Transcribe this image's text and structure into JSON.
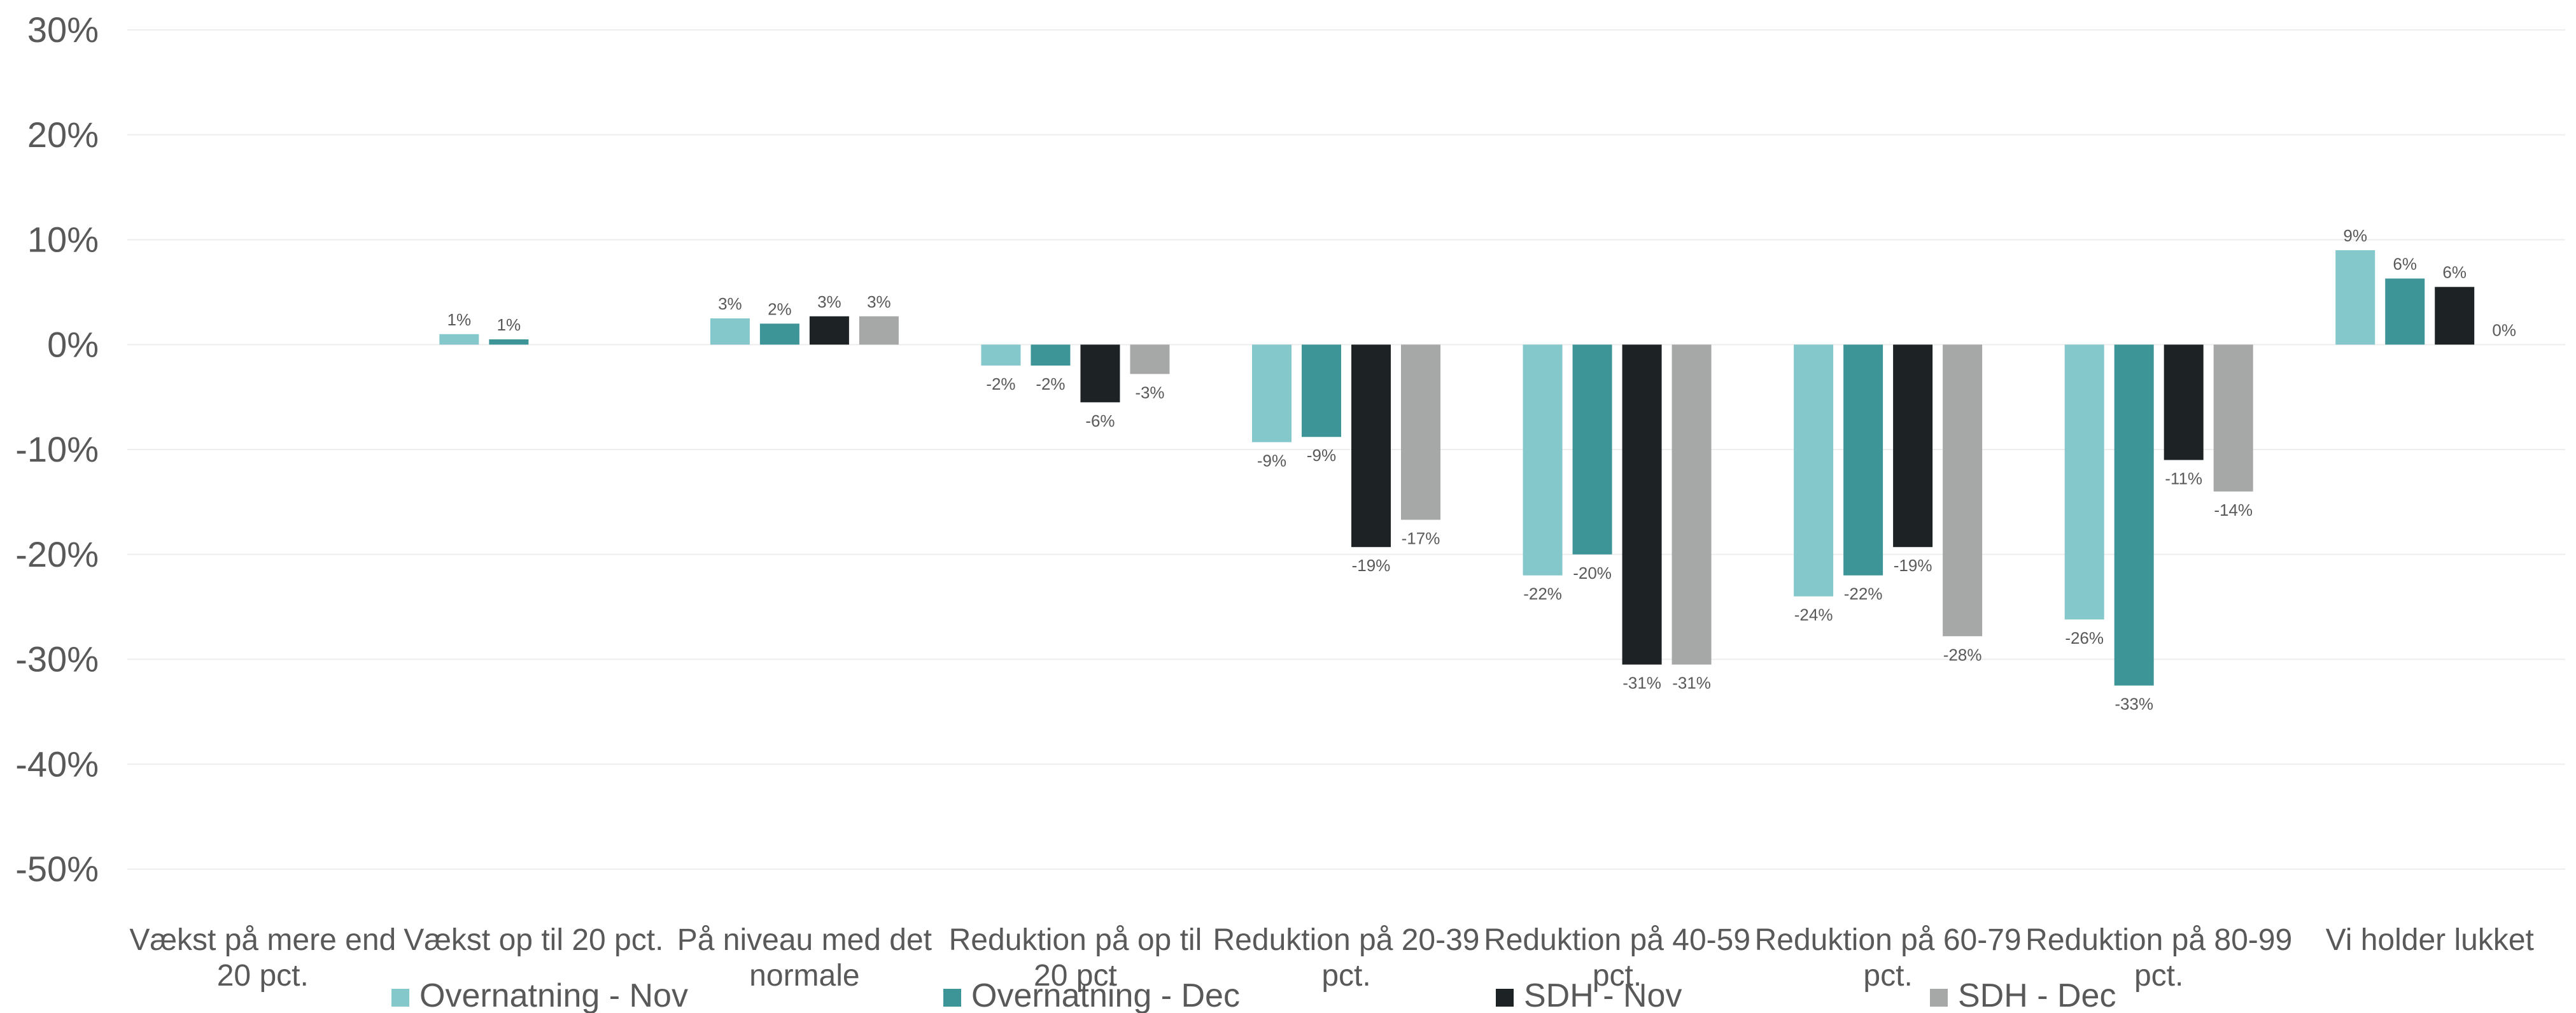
{
  "chart_data": {
    "type": "bar",
    "title": "",
    "xlabel": "",
    "ylabel": "",
    "ylim": [
      -0.5,
      0.3
    ],
    "y_ticks": [
      0.3,
      0.2,
      0.1,
      0,
      -0.1,
      -0.2,
      -0.3,
      -0.4,
      -0.5
    ],
    "y_tick_labels": [
      "30%",
      "20%",
      "10%",
      "0%",
      "-10%",
      "-20%",
      "-30%",
      "-40%",
      "-50%"
    ],
    "grid": true,
    "legend_position": "bottom",
    "categories": [
      [
        "Vækst på mere end",
        "20 pct."
      ],
      [
        "Vækst op til 20 pct."
      ],
      [
        "På niveau med det",
        "normale"
      ],
      [
        "Reduktion på op til",
        "20 pct"
      ],
      [
        "Reduktion på 20-39",
        "pct."
      ],
      [
        "Reduktion på 40-59",
        "pct."
      ],
      [
        "Reduktion på 60-79",
        "pct."
      ],
      [
        "Reduktion på 80-99",
        "pct."
      ],
      [
        "Vi holder lukket"
      ]
    ],
    "series": [
      {
        "name": "Overnatning - Nov",
        "color": "#84c8cb",
        "values": [
          null,
          0.01,
          0.025,
          -0.02,
          -0.093,
          -0.22,
          -0.24,
          -0.262,
          0.09
        ],
        "labels": [
          "",
          "1%",
          "3%",
          "-2%",
          "-9%",
          "-22%",
          "-24%",
          "-26%",
          "9%"
        ]
      },
      {
        "name": "Overnatning - Dec",
        "color": "#3d9597",
        "values": [
          null,
          0.005,
          0.02,
          -0.02,
          -0.088,
          -0.2,
          -0.22,
          -0.325,
          0.063
        ],
        "labels": [
          "",
          "1%",
          "2%",
          "-2%",
          "-9%",
          "-20%",
          "-22%",
          "-33%",
          "6%"
        ]
      },
      {
        "name": "SDH - Nov",
        "color": "#1d2224",
        "values": [
          null,
          null,
          0.027,
          -0.055,
          -0.193,
          -0.305,
          -0.193,
          -0.11,
          0.055
        ],
        "labels": [
          "",
          "",
          "3%",
          "-6%",
          "-19%",
          "-31%",
          "-19%",
          "-11%",
          "6%"
        ]
      },
      {
        "name": "SDH - Dec",
        "color": "#a6a8a7",
        "values": [
          null,
          null,
          0.027,
          -0.028,
          -0.167,
          -0.305,
          -0.278,
          -0.14,
          0
        ],
        "labels": [
          "",
          "",
          "3%",
          "-3%",
          "-17%",
          "-31%",
          "-28%",
          "-14%",
          "0%"
        ]
      }
    ]
  }
}
